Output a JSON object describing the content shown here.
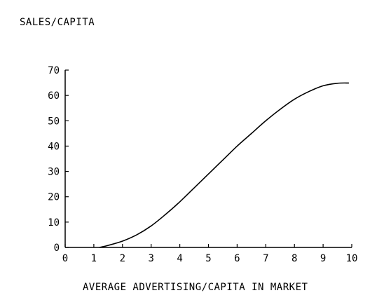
{
  "chart_data": {
    "type": "line",
    "title": "",
    "ylabel": "SALES/CAPITA",
    "xlabel": "AVERAGE ADVERTISING/CAPITA IN MARKET",
    "xlim": [
      0,
      10
    ],
    "ylim": [
      0,
      70
    ],
    "x_ticks": [
      "0",
      "1",
      "2",
      "3",
      "4",
      "5",
      "6",
      "7",
      "8",
      "9",
      "10"
    ],
    "y_ticks": [
      "0",
      "10",
      "20",
      "30",
      "40",
      "50",
      "60",
      "70"
    ],
    "grid": false,
    "series": [
      {
        "x": [
          1.2,
          1.5,
          2,
          2.5,
          3,
          3.5,
          4,
          4.5,
          5,
          5.5,
          6,
          6.5,
          7,
          7.5,
          8,
          8.5,
          9,
          9.5,
          9.9
        ],
        "values": [
          0,
          0.8,
          2.5,
          5,
          8.5,
          13,
          18,
          23.5,
          29,
          34.5,
          40,
          45,
          50,
          54.5,
          58.5,
          61.5,
          63.8,
          64.8,
          64.9
        ]
      }
    ]
  }
}
